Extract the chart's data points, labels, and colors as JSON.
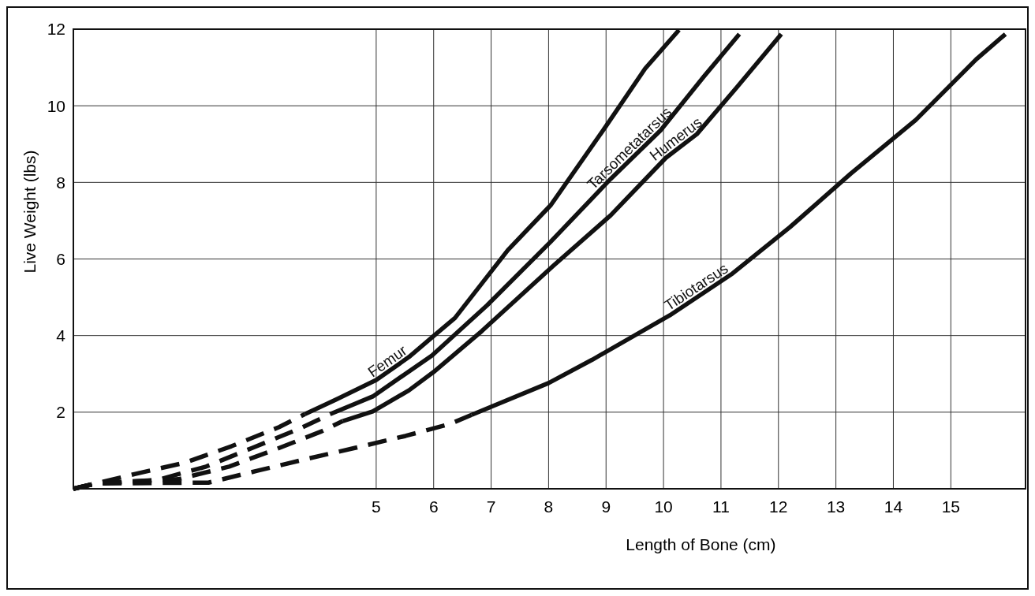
{
  "chart_data": {
    "type": "line",
    "xlabel": "Length of Bone (cm)",
    "ylabel": "Live Weight (lbs)",
    "xlim": [
      -0.27,
      16.3
    ],
    "ylim": [
      0,
      12
    ],
    "xticks": [
      5,
      6,
      7,
      8,
      9,
      10,
      11,
      12,
      13,
      14,
      15
    ],
    "yticks": [
      {
        "value": 0,
        "label": null
      },
      2,
      4,
      6,
      8,
      10,
      12
    ],
    "grid": true,
    "marker": "none",
    "series": [
      {
        "color": "#111111",
        "line_style": "dashed",
        "x": [
          -0.27,
          0.13,
          0.81,
          1.67,
          2.48,
          3.31,
          3.76
        ],
        "values": [
          0,
          0.14,
          0.39,
          0.68,
          1.11,
          1.61,
          1.95
        ]
      },
      {
        "color": "#111111",
        "line_style": "dashed",
        "x": [
          -0.27,
          0.13,
          1.19,
          2.04,
          2.85,
          3.68,
          4.2
        ],
        "values": [
          0,
          0.14,
          0.23,
          0.58,
          1.07,
          1.58,
          1.95
        ]
      },
      {
        "color": "#111111",
        "line_style": "dashed",
        "x": [
          -0.27,
          0.13,
          1.56,
          2.44,
          3.25,
          4.05,
          4.42
        ],
        "values": [
          0,
          0.14,
          0.25,
          0.58,
          1.03,
          1.5,
          1.77
        ]
      },
      {
        "color": "#111111",
        "line_style": "dashed",
        "x": [
          -0.27,
          0.13,
          2.08,
          2.93,
          3.79,
          4.64,
          5.51,
          6.28,
          6.66
        ],
        "values": [
          0,
          0.14,
          0.16,
          0.47,
          0.78,
          1.07,
          1.38,
          1.69,
          1.93
        ]
      },
      {
        "name": "Femur",
        "color": "#111111",
        "line_style": "solid",
        "x": [
          3.76,
          4.36,
          5.0,
          5.57,
          6.0,
          6.37,
          7.29,
          8.04,
          9.0,
          9.68,
          10.27
        ],
        "values": [
          1.95,
          2.37,
          2.84,
          3.44,
          3.99,
          4.46,
          6.23,
          7.41,
          9.47,
          10.97,
          11.98
        ]
      },
      {
        "name": "Tarsometatarsus",
        "color": "#111111",
        "line_style": "solid",
        "x": [
          4.2,
          4.94,
          5.97,
          6.93,
          8.03,
          9.08,
          9.95,
          10.7,
          11.32
        ],
        "values": [
          1.95,
          2.41,
          3.48,
          4.79,
          6.44,
          8.09,
          9.36,
          10.76,
          11.87
        ]
      },
      {
        "name": "Humerus",
        "color": "#111111",
        "line_style": "solid",
        "x": [
          4.42,
          4.94,
          5.57,
          6.0,
          6.84,
          8.08,
          9.08,
          10.04,
          10.58,
          11.27,
          12.05
        ],
        "values": [
          1.77,
          2.02,
          2.57,
          3.05,
          4.12,
          5.82,
          7.14,
          8.64,
          9.26,
          10.47,
          11.87
        ]
      },
      {
        "name": "Tibiotarsus",
        "color": "#111111",
        "line_style": "solid",
        "x": [
          6.66,
          8.0,
          8.76,
          10.11,
          11.2,
          12.2,
          13.26,
          14.39,
          15.44,
          15.95
        ],
        "values": [
          1.93,
          2.76,
          3.37,
          4.53,
          5.62,
          6.83,
          8.23,
          9.63,
          11.21,
          11.87
        ]
      }
    ]
  }
}
